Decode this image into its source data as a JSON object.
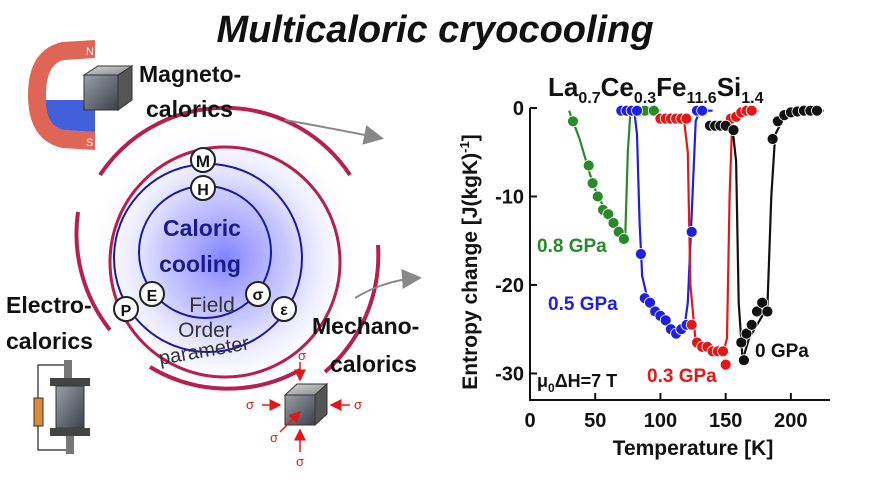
{
  "title": "Multicaloric cryocooling",
  "diagram": {
    "magneto_label_1": "Magneto-",
    "magneto_label_2": "calorics",
    "electro_label_1": "Electro-",
    "electro_label_2": "calorics",
    "mechano_label_1": "Mechano-",
    "mechano_label_2": "calorics",
    "center_1": "Caloric",
    "center_2": "cooling",
    "field": "Field",
    "order": "Order",
    "parameter": "parameter",
    "badges": [
      "M",
      "H",
      "E",
      "P",
      "σ",
      "ε"
    ],
    "sigma": "σ",
    "magnet_n": "N",
    "magnet_s": "S"
  },
  "chart_data": {
    "type": "scatter",
    "title_parts": {
      "base": [
        "La",
        "Ce",
        "Fe",
        "Si"
      ],
      "subs": [
        "0.7",
        "0.3",
        "11.6",
        "1.4"
      ]
    },
    "xlabel": "Temperature [K]",
    "ylabel_main": "Entropy change [J(kgK)",
    "ylabel_sup": "-1",
    "ylabel_end": "]",
    "xlim": [
      0,
      230
    ],
    "ylim": [
      -33,
      0
    ],
    "xticks": [
      0,
      50,
      100,
      150,
      200
    ],
    "yticks": [
      0,
      -10,
      -20,
      -30
    ],
    "field_annotation": {
      "pre": "μ",
      "sub": "0",
      "post": "ΔH=7 T"
    },
    "series": [
      {
        "name": "0.8 GPa",
        "color": "#2a8a2a",
        "points": [
          [
            33,
            -1.5
          ],
          [
            45,
            -6.5
          ],
          [
            48,
            -8.5
          ],
          [
            52,
            -10
          ],
          [
            56,
            -11.5
          ],
          [
            60,
            -12
          ],
          [
            64,
            -13
          ],
          [
            68,
            -14
          ],
          [
            72,
            -14.8
          ],
          [
            73,
            -0.3
          ],
          [
            78,
            -0.3
          ],
          [
            83,
            -0.4
          ],
          [
            88,
            -0.3
          ],
          [
            95,
            -0.3
          ]
        ],
        "curve": [
          [
            30,
            -0.3
          ],
          [
            33,
            -1.5
          ],
          [
            38,
            -3.5
          ],
          [
            42,
            -5.5
          ],
          [
            46,
            -7.5
          ],
          [
            52,
            -10
          ],
          [
            58,
            -11.5
          ],
          [
            64,
            -13
          ],
          [
            70,
            -14.3
          ],
          [
            73,
            -14.6
          ],
          [
            75,
            -5
          ],
          [
            77,
            -0.5
          ],
          [
            90,
            -0.3
          ],
          [
            100,
            -0.3
          ]
        ]
      },
      {
        "name": "0.5 GPa",
        "color": "#1f1fe0",
        "points": [
          [
            70,
            -0.3
          ],
          [
            74,
            -0.3
          ],
          [
            78,
            -0.3
          ],
          [
            82,
            -0.3
          ],
          [
            85,
            -16.5
          ],
          [
            88,
            -21.5
          ],
          [
            92,
            -22
          ],
          [
            96,
            -23
          ],
          [
            100,
            -23.5
          ],
          [
            104,
            -24
          ],
          [
            108,
            -25
          ],
          [
            112,
            -25.5
          ],
          [
            116,
            -25
          ],
          [
            120,
            -24.5
          ],
          [
            124,
            -14
          ],
          [
            128,
            -0.3
          ],
          [
            132,
            -0.3
          ]
        ],
        "curve": [
          [
            68,
            -0.3
          ],
          [
            80,
            -0.3
          ],
          [
            82,
            -3
          ],
          [
            84,
            -13
          ],
          [
            86,
            -19
          ],
          [
            90,
            -21.5
          ],
          [
            100,
            -23.5
          ],
          [
            110,
            -25
          ],
          [
            118,
            -25.2
          ],
          [
            121,
            -22
          ],
          [
            124,
            -12
          ],
          [
            127,
            -1.5
          ],
          [
            130,
            -0.3
          ],
          [
            140,
            -0.3
          ]
        ]
      },
      {
        "name": "0.3 GPa",
        "color": "#e01818",
        "points": [
          [
            100,
            -1.2
          ],
          [
            104,
            -1.2
          ],
          [
            108,
            -1.2
          ],
          [
            112,
            -1.2
          ],
          [
            116,
            -1.2
          ],
          [
            120,
            -1.2
          ],
          [
            124,
            -24.5
          ],
          [
            128,
            -26.5
          ],
          [
            132,
            -27
          ],
          [
            136,
            -27
          ],
          [
            140,
            -27.5
          ],
          [
            144,
            -27.5
          ],
          [
            148,
            -27.5
          ],
          [
            150,
            -29
          ],
          [
            154,
            -1.2
          ],
          [
            158,
            -1
          ],
          [
            162,
            -0.5
          ],
          [
            166,
            -0.3
          ],
          [
            170,
            -0.3
          ]
        ],
        "curve": [
          [
            98,
            -1.2
          ],
          [
            118,
            -1.2
          ],
          [
            121,
            -5
          ],
          [
            123,
            -20
          ],
          [
            127,
            -26.5
          ],
          [
            140,
            -27.3
          ],
          [
            148,
            -27.8
          ],
          [
            151,
            -26
          ],
          [
            153,
            -10
          ],
          [
            155,
            -1.5
          ],
          [
            160,
            -0.8
          ],
          [
            175,
            -0.3
          ]
        ]
      },
      {
        "name": "0 GPa",
        "color": "#111111",
        "points": [
          [
            138,
            -2
          ],
          [
            142,
            -2
          ],
          [
            146,
            -2
          ],
          [
            150,
            -2
          ],
          [
            156,
            -2.5
          ],
          [
            162,
            -26.5
          ],
          [
            164,
            -28.5
          ],
          [
            166,
            -25.5
          ],
          [
            170,
            -24.5
          ],
          [
            174,
            -23
          ],
          [
            178,
            -22
          ],
          [
            182,
            -23
          ],
          [
            186,
            -3.5
          ],
          [
            190,
            -1.5
          ],
          [
            195,
            -0.8
          ],
          [
            200,
            -0.5
          ],
          [
            205,
            -0.4
          ],
          [
            210,
            -0.3
          ],
          [
            215,
            -0.3
          ],
          [
            220,
            -0.3
          ]
        ],
        "curve": [
          [
            136,
            -2
          ],
          [
            155,
            -2
          ],
          [
            158,
            -6
          ],
          [
            160,
            -22
          ],
          [
            163,
            -28.5
          ],
          [
            168,
            -26
          ],
          [
            176,
            -24
          ],
          [
            182,
            -22.5
          ],
          [
            185,
            -10
          ],
          [
            188,
            -3
          ],
          [
            195,
            -1
          ],
          [
            225,
            -0.3
          ]
        ]
      }
    ],
    "labels": {
      "s08": "0.8 GPa",
      "s05": "0.5 GPa",
      "s03": "0.3 GPa",
      "s0": "0 GPa"
    },
    "colors": {
      "green": "#2a8a2a",
      "blue": "#1f1fe0",
      "red": "#e01818",
      "black": "#111111",
      "ring": "#b5204f",
      "inner_ring": "#1a1aa0"
    }
  }
}
